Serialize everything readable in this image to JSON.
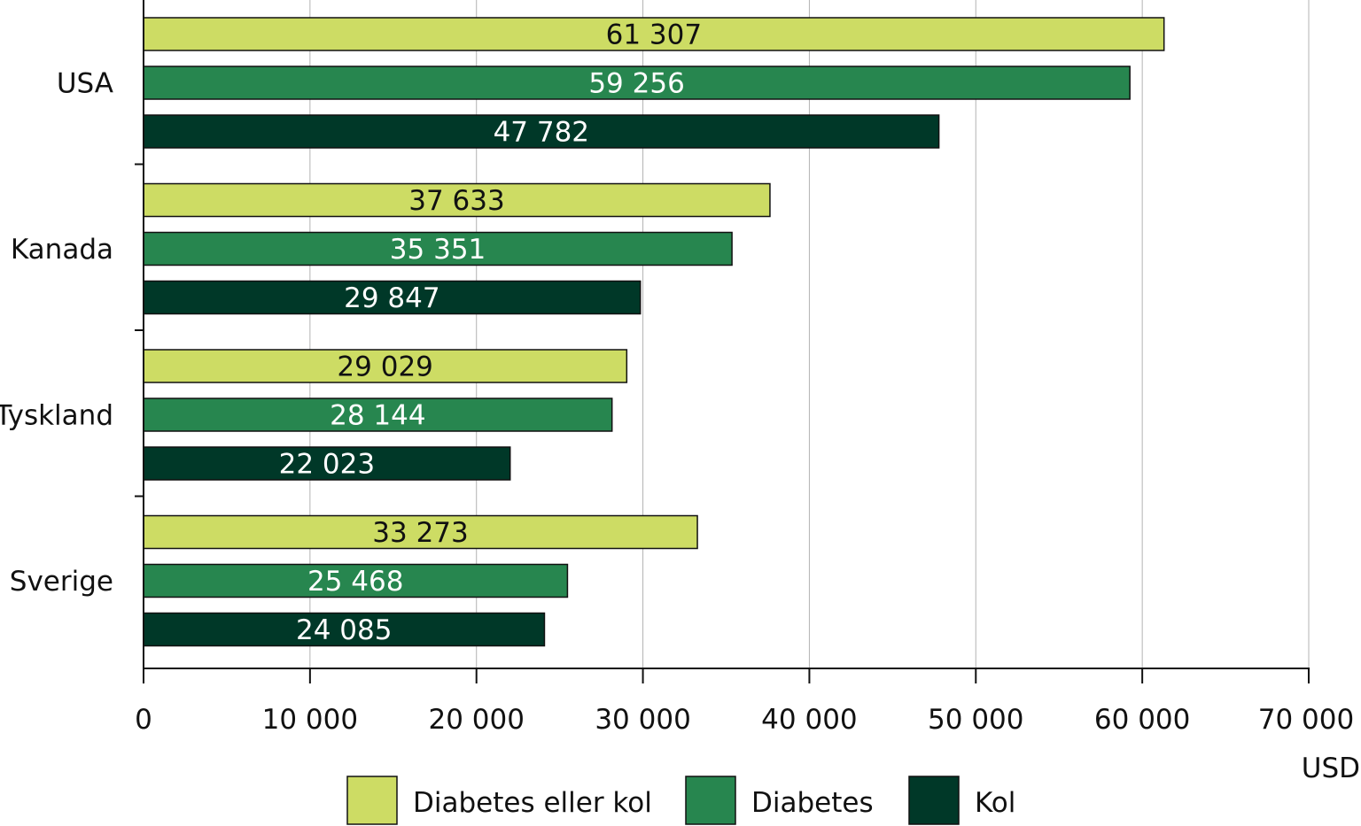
{
  "chart_data": {
    "type": "bar",
    "orientation": "horizontal",
    "categories": [
      "USA",
      "Kanada",
      "Tyskland",
      "Sverige"
    ],
    "series": [
      {
        "name": "Diabetes eller kol",
        "color": "#cddc64",
        "label_color": "#111111",
        "values": [
          61307,
          37633,
          29029,
          33273
        ],
        "labels": [
          "61 307",
          "37 633",
          "29 029",
          "33 273"
        ]
      },
      {
        "name": "Diabetes",
        "color": "#27864f",
        "label_color": "#ffffff",
        "values": [
          59256,
          35351,
          28144,
          25468
        ],
        "labels": [
          "59 256",
          "35 351",
          "28 144",
          "25 468"
        ]
      },
      {
        "name": "Kol",
        "color": "#003828",
        "label_color": "#ffffff",
        "values": [
          47782,
          29847,
          22023,
          24085
        ],
        "labels": [
          "47 782",
          "29 847",
          "22 023",
          "24 085"
        ]
      }
    ],
    "xlim": [
      0,
      70000
    ],
    "xticks": [
      0,
      10000,
      20000,
      30000,
      40000,
      50000,
      60000,
      70000
    ],
    "xtick_labels": [
      "0",
      "10 000",
      "20 000",
      "30 000",
      "40 000",
      "50 000",
      "60 000",
      "70 000"
    ],
    "unit_label": "USD",
    "grid": true,
    "legend_position": "bottom"
  }
}
